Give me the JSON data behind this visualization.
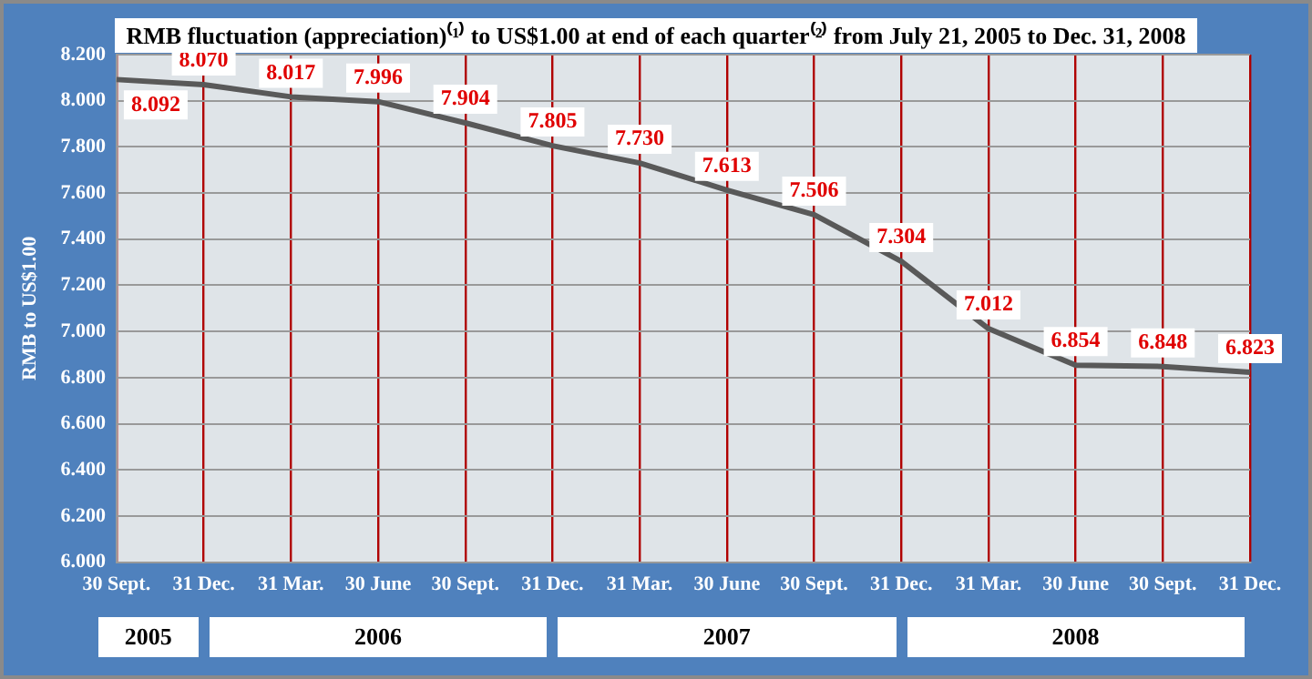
{
  "chart_data": {
    "type": "line",
    "title": "RMB fluctuation (appreciation)⁽¹⁾ to US$1.00 at end of each quarter⁽²⁾ from July 21, 2005 to Dec. 31, 2008",
    "ylabel": "RMB to US$1.00",
    "categories": [
      "30 Sept.",
      "31 Dec.",
      "31 Mar.",
      "30 June",
      "30 Sept.",
      "31 Dec.",
      "31 Mar.",
      "30 June",
      "30 Sept.",
      "31 Dec.",
      "31 Mar.",
      "30 June",
      "30 Sept.",
      "31 Dec."
    ],
    "series": [
      {
        "color": "#595959",
        "values": [
          8.092,
          8.07,
          8.017,
          7.996,
          7.904,
          7.805,
          7.73,
          7.613,
          7.506,
          7.304,
          7.012,
          6.854,
          6.848,
          6.823
        ],
        "value_labels": [
          "8.092",
          "8.070",
          "8.017",
          "7.996",
          "7.904",
          "7.805",
          "7.730",
          "7.613",
          "7.506",
          "7.304",
          "7.012",
          "6.854",
          "6.848",
          "6.823"
        ]
      }
    ],
    "ylim": [
      6,
      8.2
    ],
    "yticks": [
      {
        "value": 6,
        "label": "6.000"
      },
      {
        "value": 6.2,
        "label": "6.200"
      },
      {
        "value": 6.4,
        "label": "6.400"
      },
      {
        "value": 6.6,
        "label": "6.600"
      },
      {
        "value": 6.8,
        "label": "6.800"
      },
      {
        "value": 7,
        "label": "7.000"
      },
      {
        "value": 7.2,
        "label": "7.200"
      },
      {
        "value": 7.4,
        "label": "7.400"
      },
      {
        "value": 7.6,
        "label": "7.600"
      },
      {
        "value": 7.8,
        "label": "7.800"
      },
      {
        "value": 8,
        "label": "8.000"
      },
      {
        "value": 8.2,
        "label": "8.200"
      }
    ],
    "annotations": [
      "2005",
      "2006",
      "2007",
      "2008"
    ],
    "grid": true,
    "legend": false,
    "marker": "none",
    "line_style": "solid"
  }
}
